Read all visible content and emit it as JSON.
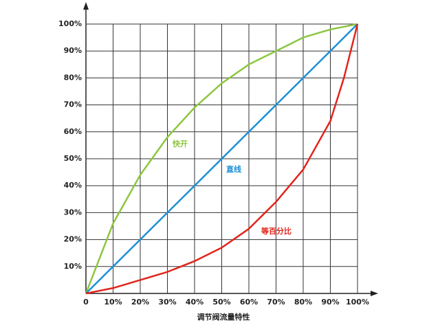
{
  "chart_data": {
    "type": "line",
    "x_label": "调节阀流量特性",
    "x": [
      0,
      10,
      20,
      30,
      40,
      50,
      60,
      70,
      80,
      90,
      95,
      100
    ],
    "series": [
      {
        "name": "快开",
        "color": "#8cc63e",
        "values": [
          0,
          26,
          44,
          58,
          69,
          78,
          85,
          90,
          95,
          98,
          99,
          100
        ]
      },
      {
        "name": "直线",
        "color": "#1a8fd6",
        "values": [
          0,
          10,
          20,
          30,
          40,
          50,
          60,
          70,
          80,
          90,
          95,
          100
        ]
      },
      {
        "name": "等百分比",
        "color": "#e2231a",
        "values": [
          0,
          2,
          5,
          8,
          12,
          17,
          24,
          34,
          46,
          64,
          80,
          100
        ]
      }
    ],
    "xlim": [
      0,
      100
    ],
    "ylim": [
      0,
      100
    ],
    "xticks": [
      0,
      {
        "value": 10,
        "label": "10%"
      },
      {
        "value": 20,
        "label": "20%"
      },
      {
        "value": 30,
        "label": "30%"
      },
      {
        "value": 40,
        "label": "40%"
      },
      {
        "value": 50,
        "label": "50%"
      },
      {
        "value": 60,
        "label": "60%"
      },
      {
        "value": 70,
        "label": "70%"
      },
      {
        "value": 80,
        "label": "80%"
      },
      {
        "value": 90,
        "label": "90%"
      },
      {
        "value": 100,
        "label": "100%"
      }
    ],
    "yticks": [
      {
        "value": 10,
        "label": "10%"
      },
      {
        "value": 20,
        "label": "20%"
      },
      {
        "value": 30,
        "label": "30%"
      },
      {
        "value": 40,
        "label": "40%"
      },
      {
        "value": 50,
        "label": "50%"
      },
      {
        "value": 60,
        "label": "60%"
      },
      {
        "value": 70,
        "label": "70%"
      },
      {
        "value": 80,
        "label": "80%"
      },
      {
        "value": 90,
        "label": "90%"
      },
      {
        "value": 100,
        "label": "100%"
      }
    ],
    "grid": true
  }
}
